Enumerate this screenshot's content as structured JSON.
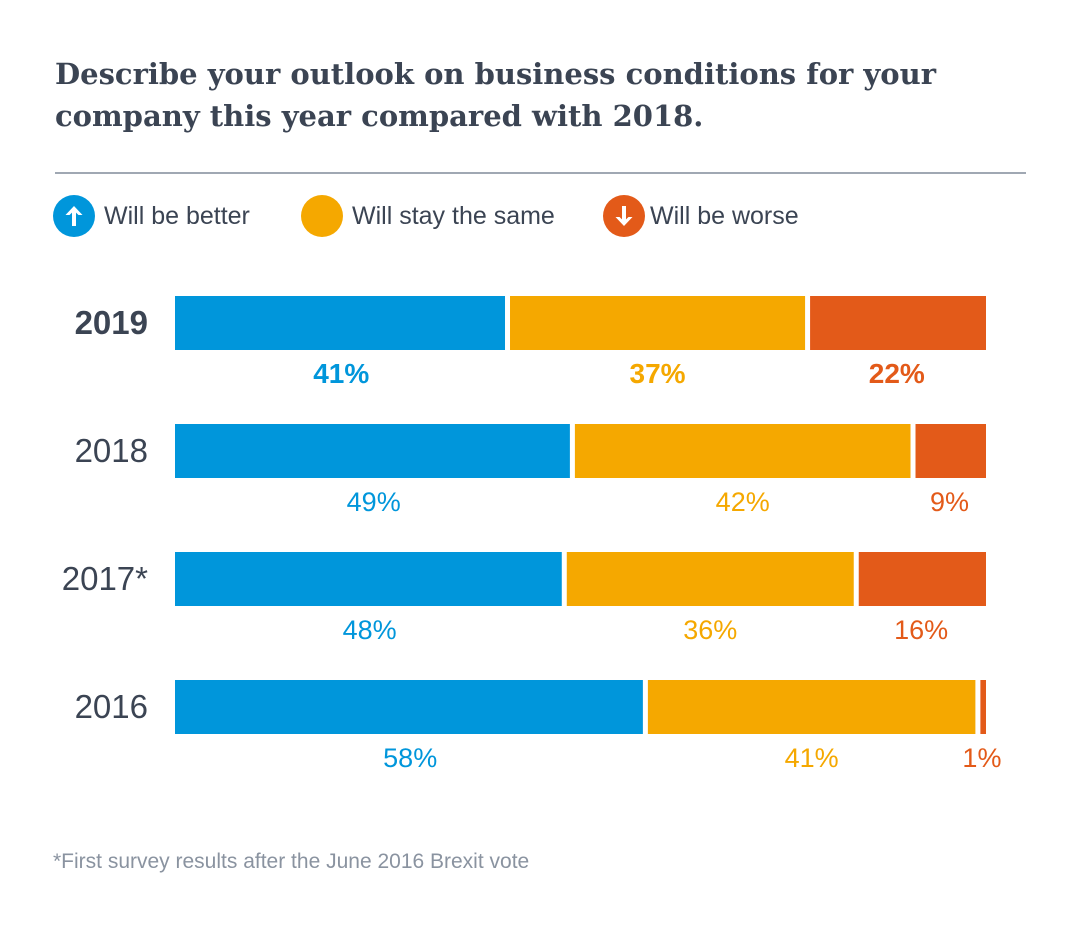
{
  "chart_data": {
    "type": "bar",
    "orientation": "horizontal",
    "stacked": true,
    "normalized": true,
    "title": "Describe your outlook on business conditions for your company this year compared with 2018.",
    "categories": [
      "2019",
      "2018",
      "2017*",
      "2016"
    ],
    "highlight_category": "2019",
    "series": [
      {
        "name": "Will be better",
        "values": [
          41,
          49,
          48,
          58
        ],
        "labels": [
          "41%",
          "49%",
          "48%",
          "58%"
        ],
        "color": "#0096db",
        "icon": "arrow-up-icon"
      },
      {
        "name": "Will stay the same",
        "values": [
          37,
          42,
          36,
          41
        ],
        "labels": [
          "37%",
          "42%",
          "36%",
          "41%"
        ],
        "color": "#f5a800",
        "icon": "none"
      },
      {
        "name": "Will be worse",
        "values": [
          22,
          9,
          16,
          1
        ],
        "labels": [
          "22%",
          "9%",
          "16%",
          "1%"
        ],
        "color": "#e35a19",
        "icon": "arrow-down-icon"
      }
    ],
    "legend_position": "top-left",
    "grid": false,
    "xlim": [
      0,
      100
    ]
  },
  "footnote": "*First survey results after the June 2016 Brexit vote",
  "colors": {
    "text": "#3b4453",
    "rule": "#a0a8b3",
    "footnote": "#8a93a0"
  }
}
